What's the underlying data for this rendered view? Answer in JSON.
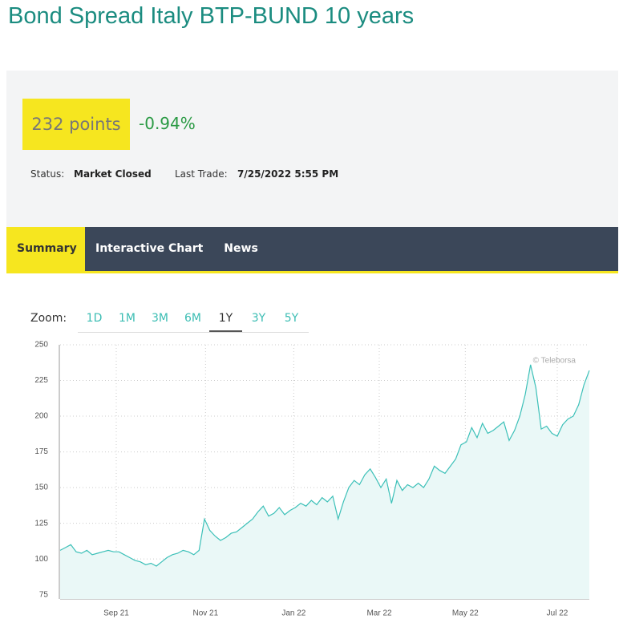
{
  "header": {
    "title": "Bond Spread Italy BTP-BUND 10 years"
  },
  "quote": {
    "value": "232 points",
    "change": "-0.94%",
    "status_label": "Status:",
    "status": "Market Closed",
    "last_trade_label": "Last Trade:",
    "last_trade": "7/25/2022 5:55 PM"
  },
  "tabs": {
    "items": [
      "Summary",
      "Interactive Chart",
      "News"
    ],
    "selected": "Summary"
  },
  "zoom": {
    "label": "Zoom:",
    "options": [
      "1D",
      "1M",
      "3M",
      "6M",
      "1Y",
      "3Y",
      "5Y"
    ],
    "selected": "1Y"
  },
  "chart_data": {
    "type": "line",
    "annotation": "© Teleborsa",
    "color": "#3cc0b8",
    "fill": "#eaf8f7",
    "grid": true,
    "values": [
      106,
      108,
      110,
      105,
      104,
      106,
      103,
      104,
      105,
      106,
      105,
      105,
      103,
      101,
      99,
      98,
      96,
      97,
      95,
      98,
      101,
      103,
      104,
      106,
      105,
      103,
      106,
      128,
      120,
      116,
      113,
      115,
      118,
      119,
      122,
      125,
      128,
      133,
      137,
      130,
      132,
      136,
      131,
      134,
      136,
      139,
      137,
      141,
      138,
      143,
      140,
      144,
      128,
      140,
      150,
      155,
      152,
      159,
      163,
      157,
      150,
      156,
      139,
      155,
      148,
      152,
      150,
      153,
      150,
      156,
      165,
      162,
      160,
      165,
      170,
      180,
      182,
      192,
      185,
      195,
      188,
      190,
      193,
      196,
      183,
      190,
      200,
      215,
      236,
      220,
      191,
      193,
      188,
      186,
      194,
      198,
      200,
      208,
      222,
      232
    ],
    "xlim": [
      0,
      99
    ],
    "xticks": [
      {
        "value": 10.5,
        "label": "Sep 21"
      },
      {
        "value": 27.2,
        "label": "Nov 21"
      },
      {
        "value": 43.7,
        "label": "Jan 22"
      },
      {
        "value": 59.7,
        "label": "Mar 22"
      },
      {
        "value": 75.8,
        "label": "May 22"
      },
      {
        "value": 93,
        "label": "Jul 22"
      }
    ],
    "ylim": [
      72,
      250
    ],
    "yticks": [
      75,
      100,
      125,
      150,
      175,
      200,
      225,
      250
    ]
  }
}
